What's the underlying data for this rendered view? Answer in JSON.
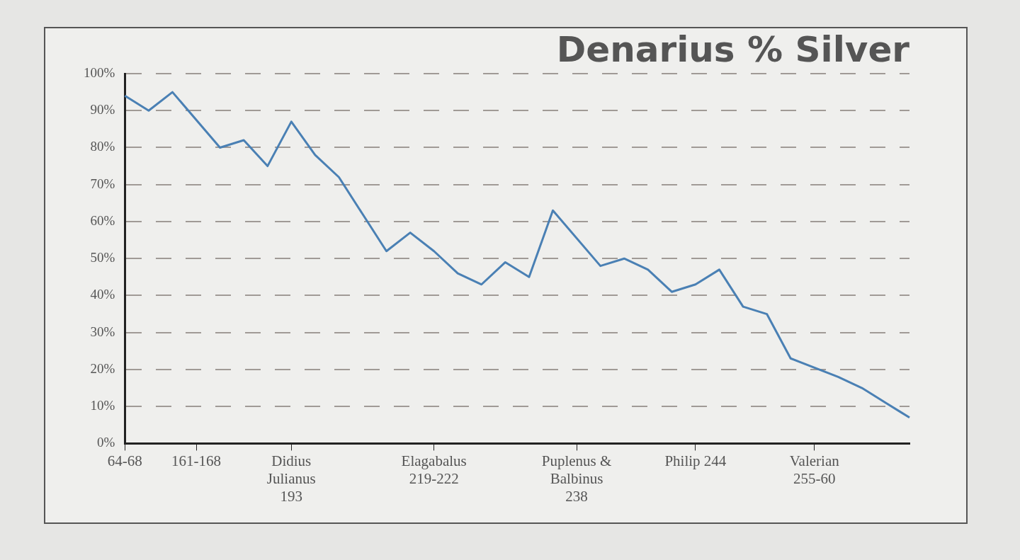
{
  "chart_data": {
    "type": "line",
    "title": "Denarius % Silver",
    "categories": [
      "64-68",
      null,
      null,
      "161-168",
      null,
      null,
      null,
      "Didius\nJulianus\n193",
      null,
      null,
      null,
      null,
      null,
      "Elagabalus\n219-222",
      null,
      null,
      null,
      null,
      null,
      "Puplenus &\nBalbinus\n238",
      null,
      null,
      null,
      null,
      "Philip 244",
      null,
      null,
      null,
      null,
      "Valerian\n255-60",
      null,
      null,
      null,
      null
    ],
    "values": [
      94,
      90,
      95,
      null,
      80,
      82,
      75,
      87,
      78,
      72,
      62,
      52,
      57,
      52,
      46,
      43,
      49,
      45,
      63,
      null,
      48,
      50,
      47,
      41,
      43,
      47,
      37,
      35,
      23,
      null,
      18,
      15,
      11,
      7
    ],
    "color": "#4a80b4",
    "ylim": [
      0,
      100
    ],
    "yticks": [
      {
        "value": 0,
        "label": "0%"
      },
      {
        "value": 10,
        "label": "10%"
      },
      {
        "value": 20,
        "label": "20%"
      },
      {
        "value": 30,
        "label": "30%"
      },
      {
        "value": 40,
        "label": "40%"
      },
      {
        "value": 50,
        "label": "50%"
      },
      {
        "value": 60,
        "label": "60%"
      },
      {
        "value": 70,
        "label": "70%"
      },
      {
        "value": 80,
        "label": "80%"
      },
      {
        "value": 90,
        "label": "90%"
      },
      {
        "value": 100,
        "label": "100%"
      }
    ],
    "grid": "y",
    "marker": "none",
    "line_style": "solid"
  }
}
